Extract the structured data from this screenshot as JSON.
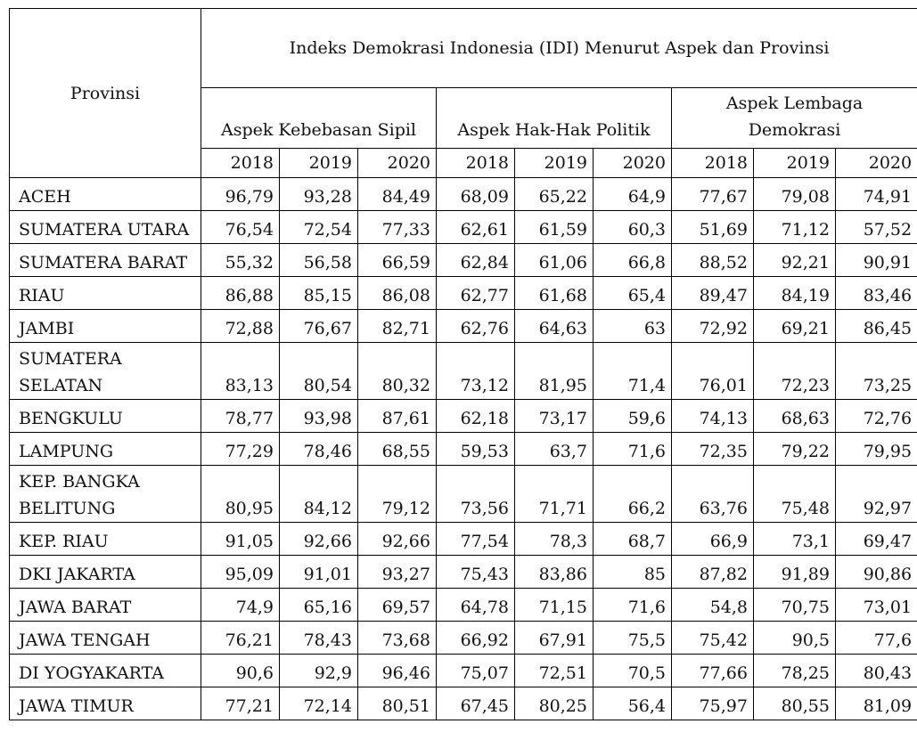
{
  "header": {
    "provinsi": "Provinsi",
    "title": "Indeks Demokrasi Indonesia (IDI) Menurut Aspek dan Provinsi",
    "aspects": [
      "Aspek Kebebasan Sipil",
      "Aspek Hak-Hak Politik",
      "Aspek Lembaga Demokrasi"
    ],
    "years": [
      "2018",
      "2019",
      "2020",
      "2018",
      "2019",
      "2020",
      "2018",
      "2019",
      "2020"
    ]
  },
  "rows": [
    {
      "name": "ACEH",
      "v": [
        "96,79",
        "93,28",
        "84,49",
        "68,09",
        "65,22",
        "64,9",
        "77,67",
        "79,08",
        "74,91"
      ]
    },
    {
      "name": "SUMATERA UTARA",
      "v": [
        "76,54",
        "72,54",
        "77,33",
        "62,61",
        "61,59",
        "60,3",
        "51,69",
        "71,12",
        "57,52"
      ]
    },
    {
      "name": "SUMATERA BARAT",
      "v": [
        "55,32",
        "56,58",
        "66,59",
        "62,84",
        "61,06",
        "66,8",
        "88,52",
        "92,21",
        "90,91"
      ]
    },
    {
      "name": "RIAU",
      "v": [
        "86,88",
        "85,15",
        "86,08",
        "62,77",
        "61,68",
        "65,4",
        "89,47",
        "84,19",
        "83,46"
      ]
    },
    {
      "name": "JAMBI",
      "v": [
        "72,88",
        "76,67",
        "82,71",
        "62,76",
        "64,63",
        "63",
        "72,92",
        "69,21",
        "86,45"
      ]
    },
    {
      "name": "SUMATERA SELATAN",
      "v": [
        "83,13",
        "80,54",
        "80,32",
        "73,12",
        "81,95",
        "71,4",
        "76,01",
        "72,23",
        "73,25"
      ]
    },
    {
      "name": "BENGKULU",
      "v": [
        "78,77",
        "93,98",
        "87,61",
        "62,18",
        "73,17",
        "59,6",
        "74,13",
        "68,63",
        "72,76"
      ]
    },
    {
      "name": "LAMPUNG",
      "v": [
        "77,29",
        "78,46",
        "68,55",
        "59,53",
        "63,7",
        "71,6",
        "72,35",
        "79,22",
        "79,95"
      ]
    },
    {
      "name": "KEP. BANGKA BELITUNG",
      "v": [
        "80,95",
        "84,12",
        "79,12",
        "73,56",
        "71,71",
        "66,2",
        "63,76",
        "75,48",
        "92,97"
      ]
    },
    {
      "name": "KEP. RIAU",
      "v": [
        "91,05",
        "92,66",
        "92,66",
        "77,54",
        "78,3",
        "68,7",
        "66,9",
        "73,1",
        "69,47"
      ]
    },
    {
      "name": "DKI JAKARTA",
      "v": [
        "95,09",
        "91,01",
        "93,27",
        "75,43",
        "83,86",
        "85",
        "87,82",
        "91,89",
        "90,86"
      ]
    },
    {
      "name": "JAWA BARAT",
      "v": [
        "74,9",
        "65,16",
        "69,57",
        "64,78",
        "71,15",
        "71,6",
        "54,8",
        "70,75",
        "73,01"
      ]
    },
    {
      "name": "JAWA TENGAH",
      "v": [
        "76,21",
        "78,43",
        "73,68",
        "66,92",
        "67,91",
        "75,5",
        "75,42",
        "90,5",
        "77,6"
      ]
    },
    {
      "name": "DI YOGYAKARTA",
      "v": [
        "90,6",
        "92,9",
        "96,46",
        "75,07",
        "72,51",
        "70,5",
        "77,66",
        "78,25",
        "80,43"
      ]
    },
    {
      "name": "JAWA TIMUR",
      "v": [
        "77,21",
        "72,14",
        "80,51",
        "67,45",
        "80,25",
        "56,4",
        "75,97",
        "80,55",
        "81,09"
      ]
    }
  ]
}
